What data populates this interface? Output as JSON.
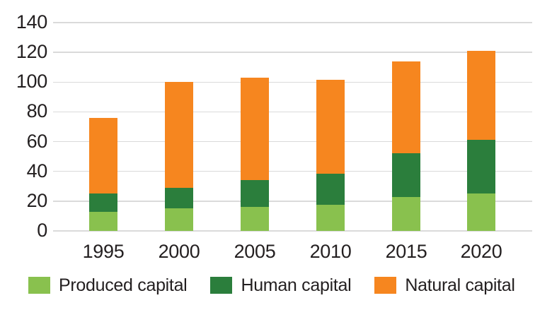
{
  "chart_data": {
    "type": "bar",
    "stacked": true,
    "categories": [
      "1995",
      "2000",
      "2005",
      "2010",
      "2015",
      "2020"
    ],
    "series": [
      {
        "name": "Produced capital",
        "color": "#89c14e",
        "values": [
          13,
          15,
          16,
          17.5,
          23,
          25
        ]
      },
      {
        "name": "Human capital",
        "color": "#2b7e3c",
        "values": [
          12,
          14,
          18,
          21,
          29,
          36
        ]
      },
      {
        "name": "Natural capital",
        "color": "#f6861f",
        "values": [
          51,
          71,
          69,
          63,
          62,
          60
        ]
      }
    ],
    "stack_totals": [
      76,
      100,
      103,
      101.5,
      114,
      121
    ],
    "yticks": [
      0,
      20,
      40,
      60,
      80,
      100,
      120,
      140
    ],
    "ylim": [
      0,
      140
    ],
    "xlabel": "",
    "ylabel": "",
    "grid": true,
    "gridline_color": "#dadada",
    "axis_text_color": "#231f20",
    "legend_position": "bottom",
    "legend_labels": [
      "Produced capital",
      "Human capital",
      "Natural capital"
    ]
  }
}
